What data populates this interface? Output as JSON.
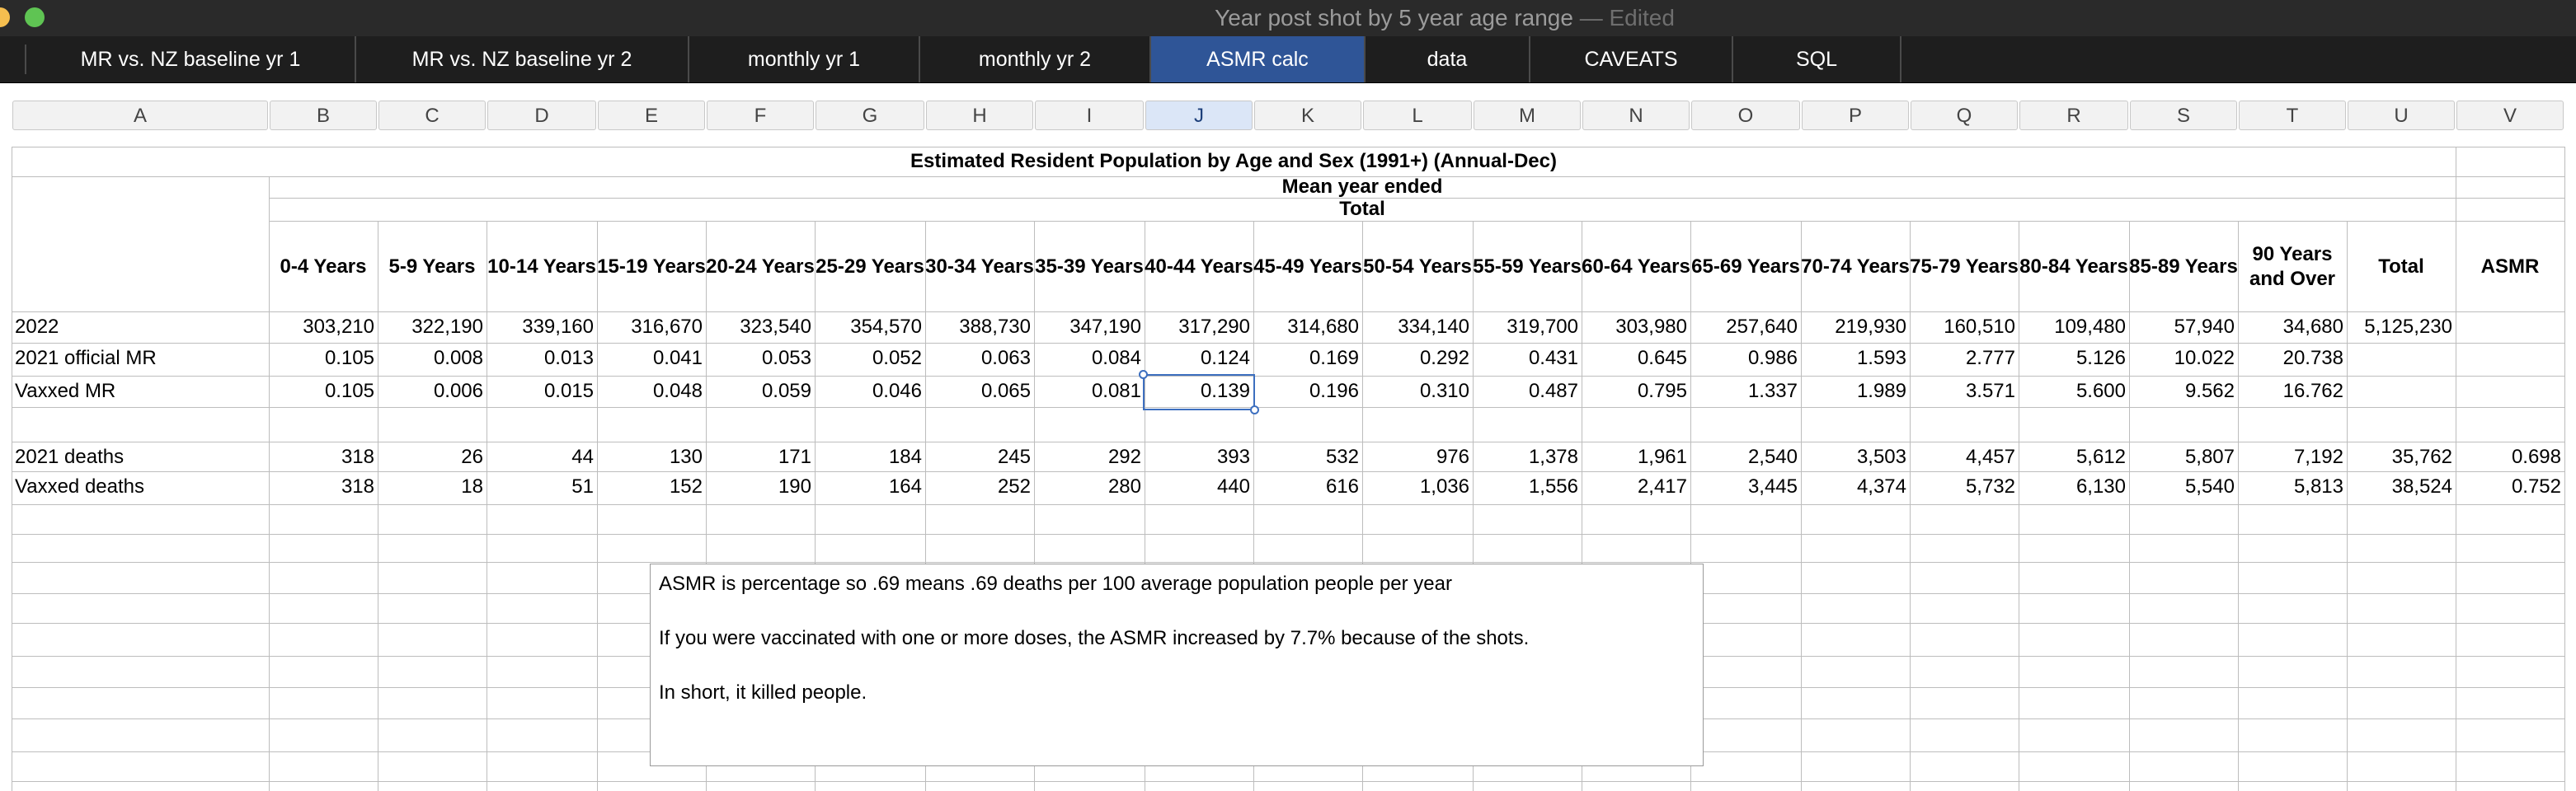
{
  "window": {
    "title": "Year post shot by 5 year age range",
    "edited": "— Edited"
  },
  "tabs": [
    {
      "label": "MR vs. NZ baseline yr 1"
    },
    {
      "label": "MR vs. NZ baseline yr 2"
    },
    {
      "label": "monthly yr 1"
    },
    {
      "label": "monthly yr 2"
    },
    {
      "label": "ASMR calc",
      "active": true
    },
    {
      "label": "data"
    },
    {
      "label": "CAVEATS"
    },
    {
      "label": "SQL"
    }
  ],
  "columns": [
    "A",
    "B",
    "C",
    "D",
    "E",
    "F",
    "G",
    "H",
    "I",
    "J",
    "K",
    "L",
    "M",
    "N",
    "O",
    "P",
    "Q",
    "R",
    "S",
    "T",
    "U",
    "V"
  ],
  "selected_column": "J",
  "table": {
    "title": "Estimated Resident Population by Age and Sex (1991+) (Annual-Dec)",
    "subtitle": "Mean year ended",
    "group": "Total",
    "headers": [
      "0-4 Years",
      "5-9 Years",
      "10-14 Years",
      "15-19 Years",
      "20-24 Years",
      "25-29 Years",
      "30-34 Years",
      "35-39 Years",
      "40-44 Years",
      "45-49 Years",
      "50-54 Years",
      "55-59 Years",
      "60-64 Years",
      "65-69 Years",
      "70-74 Years",
      "75-79 Years",
      "80-84 Years",
      "85-89 Years",
      "90 Years and Over",
      "Total",
      "ASMR"
    ],
    "rows": [
      {
        "label": "2022",
        "values": [
          "303,210",
          "322,190",
          "339,160",
          "316,670",
          "323,540",
          "354,570",
          "388,730",
          "347,190",
          "317,290",
          "314,680",
          "334,140",
          "319,700",
          "303,980",
          "257,640",
          "219,930",
          "160,510",
          "109,480",
          "57,940",
          "34,680",
          "5,125,230",
          ""
        ]
      },
      {
        "label": "2021 official MR",
        "values": [
          "0.105",
          "0.008",
          "0.013",
          "0.041",
          "0.053",
          "0.052",
          "0.063",
          "0.084",
          "0.124",
          "0.169",
          "0.292",
          "0.431",
          "0.645",
          "0.986",
          "1.593",
          "2.777",
          "5.126",
          "10.022",
          "20.738",
          "",
          ""
        ]
      },
      {
        "label": "Vaxxed MR",
        "values": [
          "0.105",
          "0.006",
          "0.015",
          "0.048",
          "0.059",
          "0.046",
          "0.065",
          "0.081",
          "0.139",
          "0.196",
          "0.310",
          "0.487",
          "0.795",
          "1.337",
          "1.989",
          "3.571",
          "5.600",
          "9.562",
          "16.762",
          "",
          ""
        ]
      },
      {
        "label": "",
        "values": [
          "",
          "",
          "",
          "",
          "",
          "",
          "",
          "",
          "",
          "",
          "",
          "",
          "",
          "",
          "",
          "",
          "",
          "",
          "",
          "",
          ""
        ]
      },
      {
        "label": "2021 deaths",
        "values": [
          "318",
          "26",
          "44",
          "130",
          "171",
          "184",
          "245",
          "292",
          "393",
          "532",
          "976",
          "1,378",
          "1,961",
          "2,540",
          "3,503",
          "4,457",
          "5,612",
          "5,807",
          "7,192",
          "35,762",
          "0.698"
        ]
      },
      {
        "label": "Vaxxed deaths",
        "values": [
          "318",
          "18",
          "51",
          "152",
          "190",
          "164",
          "252",
          "280",
          "440",
          "616",
          "1,036",
          "1,556",
          "2,417",
          "3,445",
          "4,374",
          "5,732",
          "6,130",
          "5,540",
          "5,813",
          "38,524",
          "0.752"
        ]
      }
    ]
  },
  "note": {
    "lines": [
      "ASMR is percentage so .69 means .69 deaths per 100 average population people per year",
      "If you were vaccinated with one or more doses, the ASMR increased by 7.7% because of the shots.",
      "In short, it killed people."
    ]
  }
}
